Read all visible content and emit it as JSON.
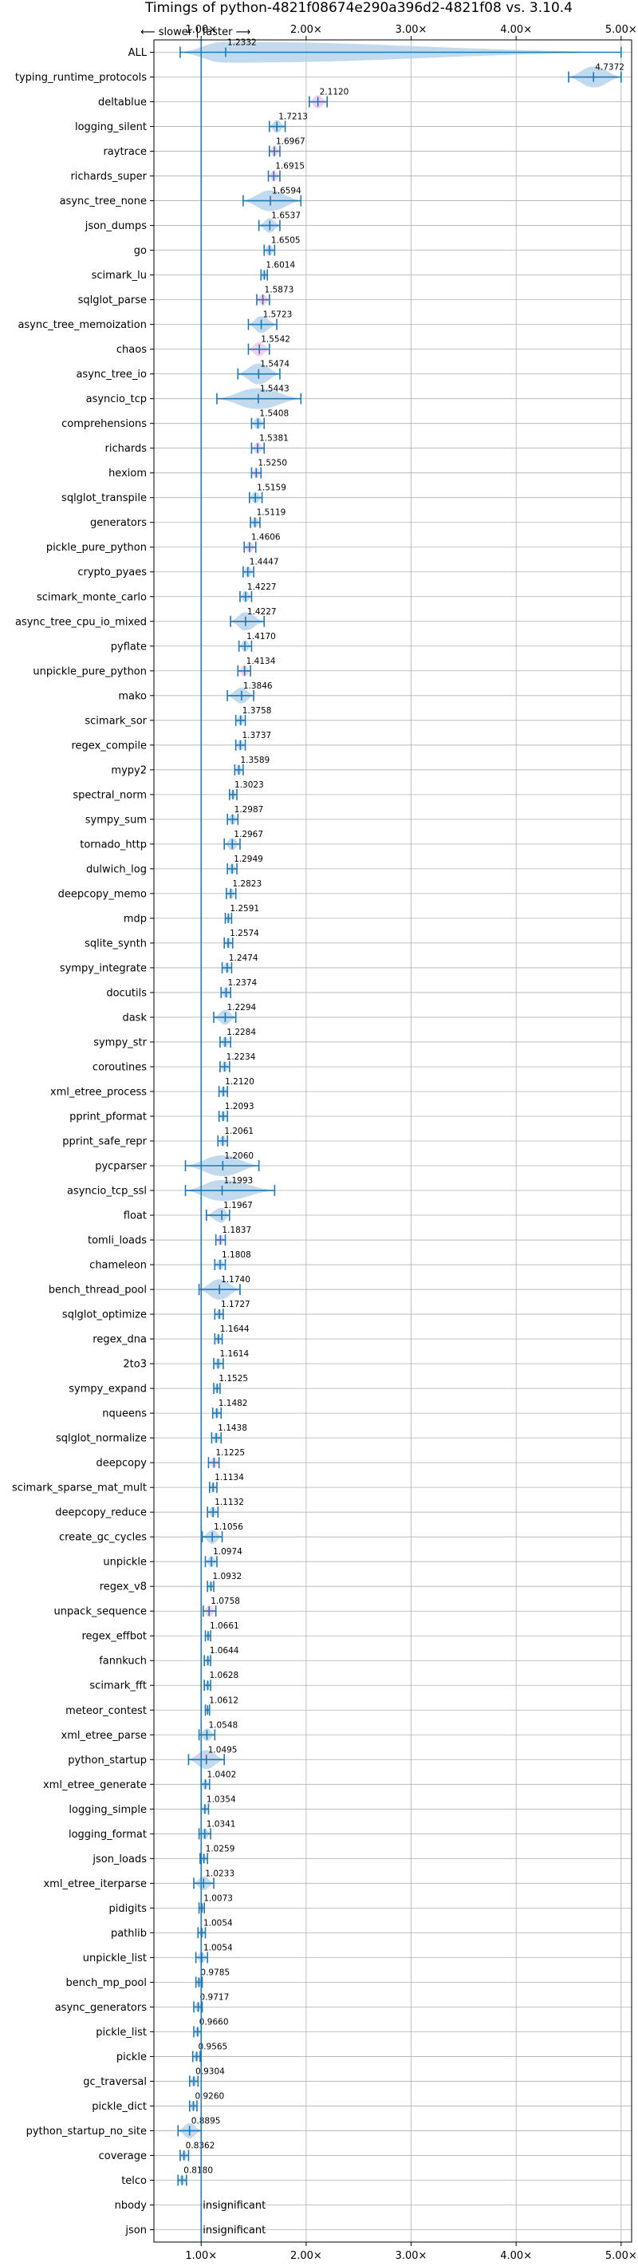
{
  "chart_data": {
    "type": "violin",
    "title": "Timings of python-4821f08674e290a396d2-4821f08 vs. 3.10.4",
    "direction_label": "⟵ slower | faster ⟶",
    "xlim": [
      0.55,
      5.1
    ],
    "x_ticks": [
      1,
      2,
      3,
      4,
      5
    ],
    "x_tick_labels": [
      "1.00×",
      "2.00×",
      "3.00×",
      "4.00×",
      "5.00×"
    ],
    "grid": true,
    "reference_line": 1.0,
    "benchmarks": [
      {
        "name": "ALL",
        "value": 1.2332,
        "label": "1.2332",
        "low": 0.8,
        "high": 5.0
      },
      {
        "name": "typing_runtime_protocols",
        "value": 4.7372,
        "label": "4.7372",
        "low": 4.5,
        "high": 5.0
      },
      {
        "name": "deltablue",
        "value": 2.112,
        "label": "2.1120",
        "low": 2.03,
        "high": 2.2,
        "highlight": true
      },
      {
        "name": "logging_silent",
        "value": 1.7213,
        "label": "1.7213",
        "low": 1.65,
        "high": 1.8
      },
      {
        "name": "raytrace",
        "value": 1.6967,
        "label": "1.6967",
        "low": 1.65,
        "high": 1.75,
        "highlight": true
      },
      {
        "name": "richards_super",
        "value": 1.6915,
        "label": "1.6915",
        "low": 1.64,
        "high": 1.75,
        "highlight": true
      },
      {
        "name": "async_tree_none",
        "value": 1.6594,
        "label": "1.6594",
        "low": 1.4,
        "high": 1.95
      },
      {
        "name": "json_dumps",
        "value": 1.6537,
        "label": "1.6537",
        "low": 1.55,
        "high": 1.75
      },
      {
        "name": "go",
        "value": 1.6505,
        "label": "1.6505",
        "low": 1.6,
        "high": 1.7
      },
      {
        "name": "scimark_lu",
        "value": 1.6014,
        "label": "1.6014",
        "low": 1.57,
        "high": 1.63
      },
      {
        "name": "sqlglot_parse",
        "value": 1.5873,
        "label": "1.5873",
        "low": 1.53,
        "high": 1.65,
        "highlight": true
      },
      {
        "name": "async_tree_memoization",
        "value": 1.5723,
        "label": "1.5723",
        "low": 1.45,
        "high": 1.72
      },
      {
        "name": "chaos",
        "value": 1.5542,
        "label": "1.5542",
        "low": 1.45,
        "high": 1.65,
        "highlight": true
      },
      {
        "name": "async_tree_io",
        "value": 1.5474,
        "label": "1.5474",
        "low": 1.35,
        "high": 1.75
      },
      {
        "name": "asyncio_tcp",
        "value": 1.5443,
        "label": "1.5443",
        "low": 1.15,
        "high": 1.95
      },
      {
        "name": "comprehensions",
        "value": 1.5408,
        "label": "1.5408",
        "low": 1.48,
        "high": 1.6
      },
      {
        "name": "richards",
        "value": 1.5381,
        "label": "1.5381",
        "low": 1.48,
        "high": 1.6,
        "highlight": true
      },
      {
        "name": "hexiom",
        "value": 1.525,
        "label": "1.5250",
        "low": 1.48,
        "high": 1.57,
        "highlight": true
      },
      {
        "name": "sqlglot_transpile",
        "value": 1.5159,
        "label": "1.5159",
        "low": 1.46,
        "high": 1.58
      },
      {
        "name": "generators",
        "value": 1.5119,
        "label": "1.5119",
        "low": 1.47,
        "high": 1.56
      },
      {
        "name": "pickle_pure_python",
        "value": 1.4606,
        "label": "1.4606",
        "low": 1.41,
        "high": 1.52,
        "highlight": true
      },
      {
        "name": "crypto_pyaes",
        "value": 1.4447,
        "label": "1.4447",
        "low": 1.4,
        "high": 1.5
      },
      {
        "name": "scimark_monte_carlo",
        "value": 1.4227,
        "label": "1.4227",
        "low": 1.37,
        "high": 1.48
      },
      {
        "name": "async_tree_cpu_io_mixed",
        "value": 1.4227,
        "label": "1.4227",
        "low": 1.28,
        "high": 1.6
      },
      {
        "name": "pyflate",
        "value": 1.417,
        "label": "1.4170",
        "low": 1.36,
        "high": 1.48
      },
      {
        "name": "unpickle_pure_python",
        "value": 1.4134,
        "label": "1.4134",
        "low": 1.35,
        "high": 1.47,
        "highlight": true
      },
      {
        "name": "mako",
        "value": 1.3846,
        "label": "1.3846",
        "low": 1.25,
        "high": 1.5
      },
      {
        "name": "scimark_sor",
        "value": 1.3758,
        "label": "1.3758",
        "low": 1.33,
        "high": 1.42
      },
      {
        "name": "regex_compile",
        "value": 1.3737,
        "label": "1.3737",
        "low": 1.33,
        "high": 1.42
      },
      {
        "name": "mypy2",
        "value": 1.3589,
        "label": "1.3589",
        "low": 1.32,
        "high": 1.4
      },
      {
        "name": "spectral_norm",
        "value": 1.3023,
        "label": "1.3023",
        "low": 1.27,
        "high": 1.34
      },
      {
        "name": "sympy_sum",
        "value": 1.2987,
        "label": "1.2987",
        "low": 1.25,
        "high": 1.35
      },
      {
        "name": "tornado_http",
        "value": 1.2967,
        "label": "1.2967",
        "low": 1.22,
        "high": 1.37
      },
      {
        "name": "dulwich_log",
        "value": 1.2949,
        "label": "1.2949",
        "low": 1.25,
        "high": 1.34
      },
      {
        "name": "deepcopy_memo",
        "value": 1.2823,
        "label": "1.2823",
        "low": 1.24,
        "high": 1.33
      },
      {
        "name": "mdp",
        "value": 1.2591,
        "label": "1.2591",
        "low": 1.23,
        "high": 1.29
      },
      {
        "name": "sqlite_synth",
        "value": 1.2574,
        "label": "1.2574",
        "low": 1.22,
        "high": 1.3
      },
      {
        "name": "sympy_integrate",
        "value": 1.2474,
        "label": "1.2474",
        "low": 1.2,
        "high": 1.29
      },
      {
        "name": "docutils",
        "value": 1.2374,
        "label": "1.2374",
        "low": 1.19,
        "high": 1.28
      },
      {
        "name": "dask",
        "value": 1.2294,
        "label": "1.2294",
        "low": 1.12,
        "high": 1.33
      },
      {
        "name": "sympy_str",
        "value": 1.2284,
        "label": "1.2284",
        "low": 1.18,
        "high": 1.28
      },
      {
        "name": "coroutines",
        "value": 1.2234,
        "label": "1.2234",
        "low": 1.18,
        "high": 1.27
      },
      {
        "name": "xml_etree_process",
        "value": 1.212,
        "label": "1.2120",
        "low": 1.17,
        "high": 1.25
      },
      {
        "name": "pprint_pformat",
        "value": 1.2093,
        "label": "1.2093",
        "low": 1.17,
        "high": 1.25
      },
      {
        "name": "pprint_safe_repr",
        "value": 1.2061,
        "label": "1.2061",
        "low": 1.16,
        "high": 1.25
      },
      {
        "name": "pycparser",
        "value": 1.206,
        "label": "1.2060",
        "low": 0.85,
        "high": 1.55
      },
      {
        "name": "asyncio_tcp_ssl",
        "value": 1.1993,
        "label": "1.1993",
        "low": 0.85,
        "high": 1.7
      },
      {
        "name": "float",
        "value": 1.1967,
        "label": "1.1967",
        "low": 1.05,
        "high": 1.27
      },
      {
        "name": "tomli_loads",
        "value": 1.1837,
        "label": "1.1837",
        "low": 1.14,
        "high": 1.23,
        "highlight": true
      },
      {
        "name": "chameleon",
        "value": 1.1808,
        "label": "1.1808",
        "low": 1.13,
        "high": 1.23
      },
      {
        "name": "bench_thread_pool",
        "value": 1.174,
        "label": "1.1740",
        "low": 0.98,
        "high": 1.37
      },
      {
        "name": "sqlglot_optimize",
        "value": 1.1727,
        "label": "1.1727",
        "low": 1.13,
        "high": 1.21
      },
      {
        "name": "regex_dna",
        "value": 1.1644,
        "label": "1.1644",
        "low": 1.13,
        "high": 1.2
      },
      {
        "name": "2to3",
        "value": 1.1614,
        "label": "1.1614",
        "low": 1.12,
        "high": 1.21
      },
      {
        "name": "sympy_expand",
        "value": 1.1525,
        "label": "1.1525",
        "low": 1.12,
        "high": 1.18
      },
      {
        "name": "nqueens",
        "value": 1.1482,
        "label": "1.1482",
        "low": 1.11,
        "high": 1.19
      },
      {
        "name": "sqlglot_normalize",
        "value": 1.1438,
        "label": "1.1438",
        "low": 1.1,
        "high": 1.19
      },
      {
        "name": "deepcopy",
        "value": 1.1225,
        "label": "1.1225",
        "low": 1.07,
        "high": 1.17,
        "highlight": true
      },
      {
        "name": "scimark_sparse_mat_mult",
        "value": 1.1134,
        "label": "1.1134",
        "low": 1.08,
        "high": 1.15
      },
      {
        "name": "deepcopy_reduce",
        "value": 1.1132,
        "label": "1.1132",
        "low": 1.06,
        "high": 1.16
      },
      {
        "name": "create_gc_cycles",
        "value": 1.1056,
        "label": "1.1056",
        "low": 1.01,
        "high": 1.2
      },
      {
        "name": "unpickle",
        "value": 1.0974,
        "label": "1.0974",
        "low": 1.04,
        "high": 1.15
      },
      {
        "name": "regex_v8",
        "value": 1.0932,
        "label": "1.0932",
        "low": 1.06,
        "high": 1.12
      },
      {
        "name": "unpack_sequence",
        "value": 1.0758,
        "label": "1.0758",
        "low": 1.02,
        "high": 1.14,
        "highlight": true
      },
      {
        "name": "regex_effbot",
        "value": 1.0661,
        "label": "1.0661",
        "low": 1.04,
        "high": 1.09
      },
      {
        "name": "fannkuch",
        "value": 1.0644,
        "label": "1.0644",
        "low": 1.03,
        "high": 1.09
      },
      {
        "name": "scimark_fft",
        "value": 1.0628,
        "label": "1.0628",
        "low": 1.03,
        "high": 1.09
      },
      {
        "name": "meteor_contest",
        "value": 1.0612,
        "label": "1.0612",
        "low": 1.04,
        "high": 1.08
      },
      {
        "name": "xml_etree_parse",
        "value": 1.0548,
        "label": "1.0548",
        "low": 0.98,
        "high": 1.13
      },
      {
        "name": "python_startup",
        "value": 1.0495,
        "label": "1.0495",
        "low": 0.88,
        "high": 1.22
      },
      {
        "name": "xml_etree_generate",
        "value": 1.0402,
        "label": "1.0402",
        "low": 1.0,
        "high": 1.08
      },
      {
        "name": "logging_simple",
        "value": 1.0354,
        "label": "1.0354",
        "low": 1.0,
        "high": 1.07
      },
      {
        "name": "logging_format",
        "value": 1.0341,
        "label": "1.0341",
        "low": 0.98,
        "high": 1.09
      },
      {
        "name": "json_loads",
        "value": 1.0259,
        "label": "1.0259",
        "low": 0.99,
        "high": 1.06
      },
      {
        "name": "xml_etree_iterparse",
        "value": 1.0233,
        "label": "1.0233",
        "low": 0.93,
        "high": 1.12
      },
      {
        "name": "pidigits",
        "value": 1.0073,
        "label": "1.0073",
        "low": 0.98,
        "high": 1.03
      },
      {
        "name": "pathlib",
        "value": 1.0054,
        "label": "1.0054",
        "low": 0.97,
        "high": 1.04
      },
      {
        "name": "unpickle_list",
        "value": 1.0054,
        "label": "1.0054",
        "low": 0.95,
        "high": 1.06
      },
      {
        "name": "bench_mp_pool",
        "value": 0.9785,
        "label": "0.9785",
        "low": 0.95,
        "high": 1.01
      },
      {
        "name": "async_generators",
        "value": 0.9717,
        "label": "0.9717",
        "low": 0.93,
        "high": 1.01
      },
      {
        "name": "pickle_list",
        "value": 0.966,
        "label": "0.9660",
        "low": 0.93,
        "high": 1.0
      },
      {
        "name": "pickle",
        "value": 0.9565,
        "label": "0.9565",
        "low": 0.92,
        "high": 0.99
      },
      {
        "name": "gc_traversal",
        "value": 0.9304,
        "label": "0.9304",
        "low": 0.89,
        "high": 0.97
      },
      {
        "name": "pickle_dict",
        "value": 0.926,
        "label": "0.9260",
        "low": 0.89,
        "high": 0.96
      },
      {
        "name": "python_startup_no_site",
        "value": 0.8895,
        "label": "0.8895",
        "low": 0.78,
        "high": 1.0
      },
      {
        "name": "coverage",
        "value": 0.8362,
        "label": "0.8362",
        "low": 0.8,
        "high": 0.88
      },
      {
        "name": "telco",
        "value": 0.818,
        "label": "0.8180",
        "low": 0.78,
        "high": 0.86
      },
      {
        "name": "nbody",
        "value": null,
        "label": "insignificant"
      },
      {
        "name": "json",
        "value": null,
        "label": "insignificant"
      }
    ]
  },
  "colors": {
    "violin": "#aecde8",
    "whisker": "#1f77b4",
    "highlight": "#e377c2",
    "grid": "#b0b0b0",
    "reference": "#1f77b4"
  }
}
